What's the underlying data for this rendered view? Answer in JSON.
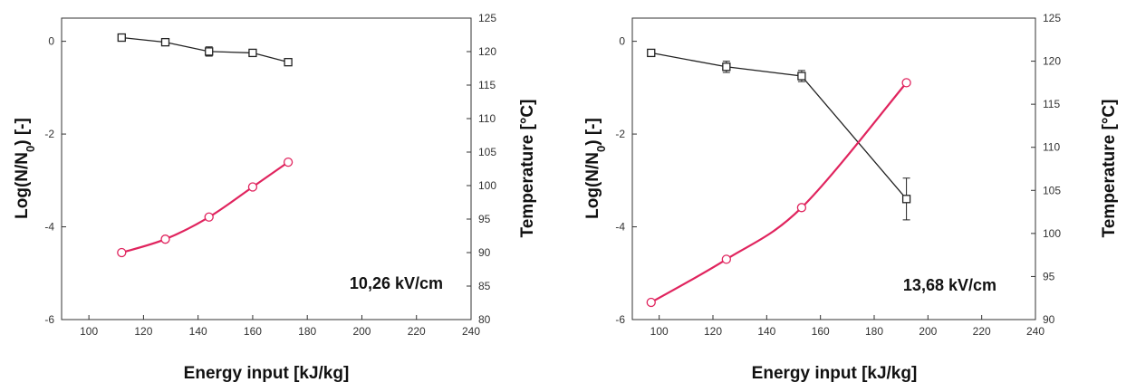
{
  "chart_data": [
    {
      "type": "line",
      "annotation": "10,26 kV/cm",
      "xlabel": "Energy input [kJ/kg]",
      "ylabel_left": "Log(N/N",
      "ylabel_left_sub": "0",
      "ylabel_left_end": ") [-]",
      "ylabel_right": "Temperature [°C]",
      "xlim": [
        90,
        240
      ],
      "xticks": [
        100,
        120,
        140,
        160,
        180,
        200,
        220,
        240
      ],
      "ylim_left": [
        -6,
        0.5
      ],
      "yticks_left": [
        -6,
        -4,
        -2,
        0
      ],
      "ylim_right": [
        80,
        125
      ],
      "yticks_right": [
        80,
        85,
        90,
        95,
        100,
        105,
        110,
        115,
        120,
        125
      ],
      "series": [
        {
          "axis": "left",
          "color": "#222222",
          "marker": "square-open",
          "x": [
            112,
            128,
            144,
            160,
            173
          ],
          "y": [
            0.08,
            -0.02,
            -0.22,
            -0.25,
            -0.45
          ],
          "err": [
            0.06,
            0.05,
            0.1,
            0.06,
            0.06
          ]
        },
        {
          "axis": "right",
          "color": "#e0245e",
          "marker": "circle-open",
          "x": [
            112,
            128,
            144,
            160,
            173
          ],
          "y": [
            90.0,
            92.0,
            95.3,
            99.8,
            103.5
          ]
        }
      ]
    },
    {
      "type": "line",
      "annotation": "13,68 kV/cm",
      "xlabel": "Energy input [kJ/kg]",
      "ylabel_left": "Log(N/N",
      "ylabel_left_sub": "0",
      "ylabel_left_end": ") [-]",
      "ylabel_right": "Temperature [°C]",
      "xlim": [
        90,
        240
      ],
      "xticks": [
        100,
        120,
        140,
        160,
        180,
        200,
        220,
        240
      ],
      "ylim_left": [
        -6,
        0.5
      ],
      "yticks_left": [
        -6,
        -4,
        -2,
        0
      ],
      "ylim_right": [
        90,
        125
      ],
      "yticks_right": [
        90,
        95,
        100,
        105,
        110,
        115,
        120,
        125
      ],
      "series": [
        {
          "axis": "left",
          "color": "#222222",
          "marker": "square-open",
          "x": [
            97,
            125,
            153,
            192
          ],
          "y": [
            -0.25,
            -0.55,
            -0.75,
            -3.4
          ],
          "err": [
            0.07,
            0.12,
            0.12,
            0.45
          ]
        },
        {
          "axis": "right",
          "color": "#e0245e",
          "marker": "circle-open",
          "x": [
            97,
            125,
            153,
            192
          ],
          "y": [
            92.0,
            97.0,
            103.0,
            117.5
          ]
        }
      ]
    }
  ]
}
